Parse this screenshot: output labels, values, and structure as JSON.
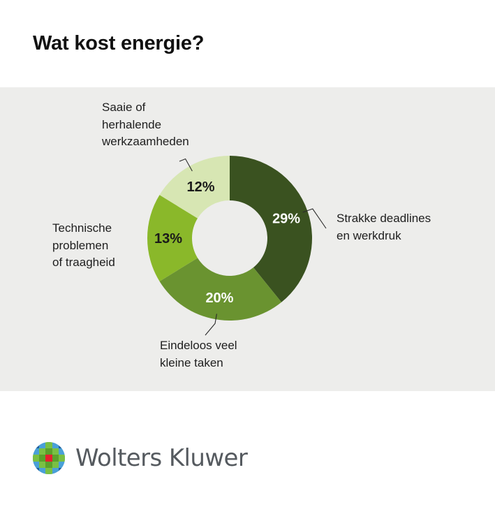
{
  "title": "Wat kost energie?",
  "chart_data": {
    "type": "pie",
    "subtype": "donut",
    "title": "Wat kost energie?",
    "start_angle_deg": 0,
    "direction": "clockwise",
    "slices": [
      {
        "label": "Strakke deadlines en werkdruk",
        "label_lines": [
          "Strakke deadlines",
          "en werkdruk"
        ],
        "value": 29,
        "display": "29%",
        "color": "#3a5220",
        "text_color": "#ffffff"
      },
      {
        "label": "Eindeloos veel kleine taken",
        "label_lines": [
          "Eindeloos veel",
          "kleine taken"
        ],
        "value": 20,
        "display": "20%",
        "color": "#6a9330",
        "text_color": "#ffffff"
      },
      {
        "label": "Technische problemen of traagheid",
        "label_lines": [
          "Technische",
          "problemen",
          "of traagheid"
        ],
        "value": 13,
        "display": "13%",
        "color": "#8ab82a",
        "text_color": "#1a1a1a"
      },
      {
        "label": "Saaie of herhalende werkzaamheden",
        "label_lines": [
          "Saaie of",
          "herhalende",
          "werkzaamheden"
        ],
        "value": 12,
        "display": "12%",
        "color": "#d7e6b3",
        "text_color": "#1a1a1a"
      }
    ]
  },
  "footer": {
    "brand": "Wolters Kluwer",
    "registered_mark": "®"
  }
}
